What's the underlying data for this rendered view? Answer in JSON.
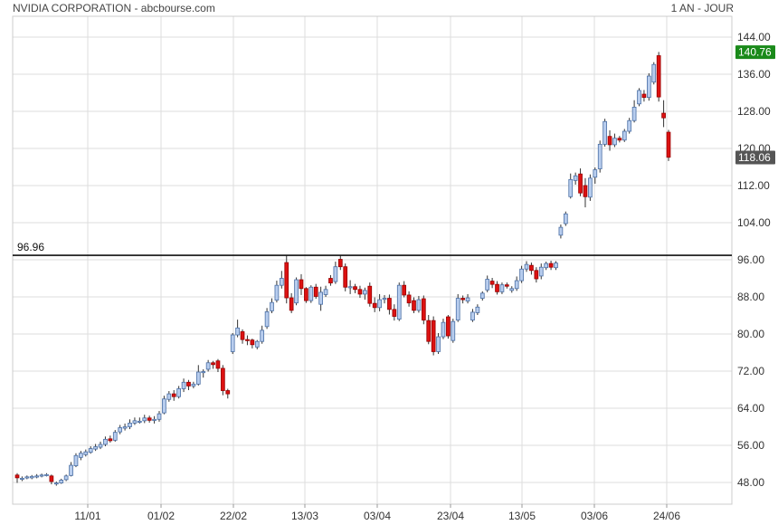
{
  "header": {
    "title": "NVIDIA CORPORATION - abcbourse.com",
    "period": "1 AN - JOUR"
  },
  "colors": {
    "up_fill": "#b8cdee",
    "up_stroke": "#4a6fa5",
    "down_fill": "#dd1111",
    "down_stroke": "#990000",
    "wick": "#333333",
    "grid": "#dddddd",
    "high_badge": "#1a8a1a",
    "last_badge": "#555555"
  },
  "chart_data": {
    "type": "candlestick",
    "ylim": [
      45,
      147
    ],
    "yticks": [
      "144.00",
      "136.00",
      "128.00",
      "120.00",
      "112.00",
      "104.00",
      "96.00",
      "88.00",
      "80.00",
      "72.00",
      "64.00",
      "56.00",
      "48.00"
    ],
    "xticks": [
      "11/01",
      "01/02",
      "22/02",
      "13/03",
      "03/04",
      "23/04",
      "13/05",
      "03/06",
      "24/06"
    ],
    "reference_line": {
      "value": 96.96,
      "label": "96.96"
    },
    "high_label": "140.76",
    "last_label": "118.06",
    "candles": [
      [
        49.6,
        49.0,
        47.9,
        50.0
      ],
      [
        48.7,
        48.9,
        48.3,
        49.3
      ],
      [
        49.0,
        49.2,
        48.7,
        49.5
      ],
      [
        49.0,
        49.3,
        48.7,
        49.6
      ],
      [
        49.2,
        49.4,
        48.9,
        49.8
      ],
      [
        49.4,
        49.6,
        49.1,
        49.9
      ],
      [
        49.6,
        49.7,
        49.3,
        50.0
      ],
      [
        49.4,
        48.2,
        47.6,
        49.7
      ],
      [
        47.7,
        47.9,
        47.3,
        48.2
      ],
      [
        47.9,
        48.5,
        47.7,
        48.8
      ],
      [
        48.6,
        49.4,
        48.3,
        49.7
      ],
      [
        49.5,
        51.7,
        49.3,
        52.4
      ],
      [
        51.6,
        53.8,
        51.3,
        54.3
      ],
      [
        53.4,
        54.3,
        52.8,
        54.8
      ],
      [
        54.0,
        54.6,
        53.6,
        55.1
      ],
      [
        54.5,
        55.3,
        54.2,
        55.8
      ],
      [
        55.2,
        55.7,
        54.8,
        56.3
      ],
      [
        55.6,
        56.2,
        55.2,
        56.8
      ],
      [
        56.2,
        57.3,
        55.8,
        57.9
      ],
      [
        57.4,
        57.0,
        56.6,
        58.1
      ],
      [
        57.1,
        58.8,
        56.8,
        59.3
      ],
      [
        58.9,
        59.8,
        58.4,
        60.4
      ],
      [
        59.7,
        60.0,
        59.2,
        60.7
      ],
      [
        60.0,
        60.8,
        59.5,
        61.6
      ],
      [
        60.8,
        61.3,
        60.4,
        62.0
      ],
      [
        61.0,
        61.2,
        60.7,
        62.0
      ],
      [
        61.3,
        61.9,
        60.8,
        62.6
      ],
      [
        61.9,
        61.4,
        60.9,
        62.4
      ],
      [
        61.4,
        61.6,
        60.7,
        62.3
      ],
      [
        61.6,
        62.8,
        61.1,
        63.4
      ],
      [
        63.0,
        66.0,
        62.7,
        66.7
      ],
      [
        65.9,
        67.1,
        65.4,
        67.7
      ],
      [
        67.1,
        66.5,
        65.6,
        67.9
      ],
      [
        66.5,
        68.2,
        66.1,
        68.8
      ],
      [
        68.2,
        69.6,
        67.5,
        70.4
      ],
      [
        69.6,
        68.8,
        67.9,
        70.1
      ],
      [
        68.8,
        69.2,
        68.3,
        69.7
      ],
      [
        69.2,
        71.8,
        68.9,
        73.3
      ],
      [
        71.8,
        71.9,
        70.6,
        72.4
      ],
      [
        72.4,
        73.8,
        71.9,
        74.4
      ],
      [
        73.8,
        73.4,
        72.5,
        74.2
      ],
      [
        74.2,
        72.6,
        71.8,
        74.6
      ],
      [
        72.6,
        67.8,
        66.8,
        73.3
      ],
      [
        67.8,
        67.1,
        66.1,
        68.2
      ],
      [
        76.2,
        79.8,
        75.7,
        80.2
      ],
      [
        79.8,
        81.3,
        79.3,
        83.1
      ],
      [
        80.5,
        78.8,
        77.9,
        81.0
      ],
      [
        78.8,
        78.7,
        77.6,
        79.7
      ],
      [
        78.7,
        77.7,
        76.9,
        79.0
      ],
      [
        77.2,
        78.4,
        76.7,
        78.7
      ],
      [
        78.4,
        80.8,
        77.9,
        81.8
      ],
      [
        81.6,
        84.8,
        81.1,
        85.6
      ],
      [
        85.0,
        86.8,
        84.5,
        87.7
      ],
      [
        87.3,
        90.5,
        86.8,
        91.5
      ],
      [
        90.5,
        92.0,
        89.8,
        93.6
      ],
      [
        95.4,
        87.8,
        86.6,
        97.0
      ],
      [
        87.8,
        85.1,
        84.5,
        88.8
      ],
      [
        86.7,
        91.7,
        86.2,
        92.2
      ],
      [
        91.7,
        89.8,
        88.4,
        92.9
      ],
      [
        89.8,
        87.2,
        86.7,
        90.1
      ],
      [
        87.2,
        90.1,
        86.7,
        90.5
      ],
      [
        90.1,
        88.1,
        87.6,
        90.8
      ],
      [
        86.4,
        89.0,
        85.0,
        90.2
      ],
      [
        88.5,
        89.6,
        88.0,
        90.4
      ],
      [
        92.0,
        91.0,
        90.4,
        92.7
      ],
      [
        91.3,
        94.5,
        90.8,
        95.6
      ],
      [
        96.1,
        94.5,
        93.8,
        96.9
      ],
      [
        94.5,
        90.1,
        89.2,
        95.2
      ],
      [
        90.1,
        90.2,
        88.6,
        91.6
      ],
      [
        90.2,
        89.6,
        88.8,
        90.8
      ],
      [
        89.6,
        88.6,
        87.8,
        90.4
      ],
      [
        88.6,
        89.4,
        87.4,
        90.0
      ],
      [
        90.3,
        86.6,
        85.9,
        91.1
      ],
      [
        86.6,
        85.7,
        84.7,
        87.9
      ],
      [
        85.7,
        87.4,
        84.9,
        88.6
      ],
      [
        87.6,
        87.7,
        86.6,
        88.4
      ],
      [
        87.7,
        85.3,
        84.2,
        88.5
      ],
      [
        85.3,
        83.8,
        82.9,
        86.4
      ],
      [
        83.2,
        90.5,
        82.8,
        91.1
      ],
      [
        90.5,
        88.4,
        87.9,
        91.4
      ],
      [
        88.4,
        86.7,
        85.9,
        89.2
      ],
      [
        87.2,
        85.1,
        84.5,
        87.9
      ],
      [
        85.1,
        87.4,
        84.6,
        88.2
      ],
      [
        87.6,
        83.0,
        82.1,
        88.3
      ],
      [
        82.9,
        78.4,
        77.8,
        84.1
      ],
      [
        82.9,
        76.2,
        75.4,
        83.8
      ],
      [
        76.2,
        79.4,
        75.7,
        80.2
      ],
      [
        79.4,
        82.5,
        78.9,
        83.3
      ],
      [
        83.7,
        79.6,
        79.0,
        84.1
      ],
      [
        78.6,
        82.7,
        78.1,
        83.3
      ],
      [
        83.0,
        87.7,
        82.6,
        88.6
      ],
      [
        87.7,
        87.4,
        86.6,
        88.3
      ],
      [
        87.1,
        87.8,
        86.6,
        88.6
      ],
      [
        83.0,
        84.7,
        82.6,
        85.4
      ],
      [
        84.6,
        85.8,
        84.1,
        86.4
      ],
      [
        87.7,
        88.8,
        87.2,
        89.2
      ],
      [
        89.5,
        91.8,
        89.0,
        92.6
      ],
      [
        91.4,
        90.7,
        89.9,
        92.1
      ],
      [
        90.7,
        89.1,
        88.5,
        91.4
      ],
      [
        89.1,
        90.6,
        88.6,
        91.1
      ],
      [
        90.6,
        90.3,
        89.8,
        91.1
      ],
      [
        89.4,
        89.8,
        88.9,
        90.3
      ],
      [
        89.8,
        91.5,
        89.3,
        92.4
      ],
      [
        91.5,
        94.0,
        91.0,
        94.7
      ],
      [
        94.0,
        95.0,
        93.4,
        95.7
      ],
      [
        94.8,
        93.7,
        92.8,
        95.4
      ],
      [
        93.7,
        91.9,
        91.1,
        94.4
      ],
      [
        92.5,
        94.4,
        91.8,
        95.2
      ],
      [
        94.3,
        95.2,
        93.8,
        95.6
      ],
      [
        95.2,
        94.4,
        93.8,
        95.8
      ],
      [
        94.3,
        95.3,
        93.8,
        95.7
      ],
      [
        101.3,
        103.0,
        100.6,
        103.6
      ],
      [
        103.8,
        105.9,
        103.3,
        106.4
      ],
      [
        109.6,
        113.3,
        109.2,
        114.6
      ],
      [
        113.1,
        114.1,
        112.2,
        114.8
      ],
      [
        114.5,
        110.4,
        109.7,
        115.7
      ],
      [
        112.0,
        109.6,
        107.3,
        113.6
      ],
      [
        109.5,
        113.6,
        108.7,
        114.4
      ],
      [
        113.8,
        115.4,
        112.4,
        115.9
      ],
      [
        115.6,
        120.9,
        114.8,
        121.7
      ],
      [
        120.9,
        125.8,
        120.4,
        126.4
      ],
      [
        122.6,
        120.8,
        119.5,
        123.9
      ],
      [
        120.8,
        122.2,
        120.3,
        123.2
      ],
      [
        122.2,
        121.8,
        121.3,
        122.7
      ],
      [
        121.8,
        123.7,
        121.4,
        124.2
      ],
      [
        123.7,
        126.0,
        123.2,
        126.6
      ],
      [
        126.0,
        128.9,
        125.6,
        130.4
      ],
      [
        129.6,
        132.5,
        129.1,
        133.0
      ],
      [
        131.7,
        131.0,
        130.1,
        132.6
      ],
      [
        131.0,
        135.6,
        130.3,
        136.2
      ],
      [
        134.3,
        138.1,
        133.8,
        138.6
      ],
      [
        140.0,
        131.1,
        130.1,
        140.8
      ],
      [
        127.6,
        126.6,
        124.6,
        130.4
      ],
      [
        123.5,
        118.1,
        117.3,
        124.0
      ]
    ]
  }
}
